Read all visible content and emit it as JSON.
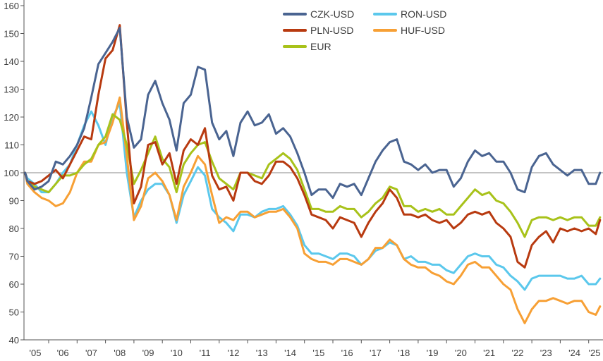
{
  "chart_data": {
    "type": "line",
    "title": "",
    "xlabel": "",
    "ylabel": "",
    "ylim": [
      40,
      160
    ],
    "yticks": [
      40,
      50,
      60,
      70,
      80,
      90,
      100,
      110,
      120,
      130,
      140,
      150,
      160
    ],
    "xlim": [
      2005.17,
      2025.4
    ],
    "xtick_labels": [
      "'05",
      "'06",
      "'07",
      "'08",
      "'09",
      "'10",
      "'11",
      "'12",
      "'13",
      "'14",
      "'15",
      "'16",
      "'17",
      "'18",
      "'19",
      "'20",
      "'21",
      "'22",
      "'23",
      "'24",
      "'25"
    ],
    "xtick_years": [
      2005,
      2006,
      2007,
      2008,
      2009,
      2010,
      2011,
      2012,
      2013,
      2014,
      2015,
      2016,
      2017,
      2018,
      2019,
      2020,
      2021,
      2022,
      2023,
      2024,
      2025
    ],
    "reference_line": 100,
    "grid": false,
    "legend_position": "top-right",
    "x": [
      2005.17,
      2005.25,
      2005.5,
      2005.75,
      2006,
      2006.25,
      2006.5,
      2006.75,
      2007,
      2007.25,
      2007.5,
      2007.75,
      2008,
      2008.25,
      2008.5,
      2008.75,
      2009,
      2009.25,
      2009.5,
      2009.75,
      2010,
      2010.25,
      2010.5,
      2010.75,
      2011,
      2011.25,
      2011.5,
      2011.75,
      2012,
      2012.25,
      2012.5,
      2012.75,
      2013,
      2013.25,
      2013.5,
      2013.75,
      2014,
      2014.25,
      2014.5,
      2014.75,
      2015,
      2015.25,
      2015.5,
      2015.75,
      2016,
      2016.25,
      2016.5,
      2016.75,
      2017,
      2017.25,
      2017.5,
      2017.75,
      2018,
      2018.25,
      2018.5,
      2018.75,
      2019,
      2019.25,
      2019.5,
      2019.75,
      2020,
      2020.25,
      2020.5,
      2020.75,
      2021,
      2021.25,
      2021.5,
      2021.75,
      2022,
      2022.25,
      2022.5,
      2022.75,
      2023,
      2023.25,
      2023.5,
      2023.75,
      2024,
      2024.25,
      2024.5,
      2024.75,
      2025,
      2025.25,
      2025.4
    ],
    "series": [
      {
        "name": "RON-USD",
        "color": "#5bc8ec",
        "values": [
          100,
          98,
          96,
          93,
          93,
          96,
          100,
          103,
          110,
          117,
          122,
          117,
          110,
          120,
          125,
          100,
          84,
          90,
          94,
          96,
          96,
          92,
          82,
          92,
          97,
          102,
          99,
          87,
          84,
          82,
          79,
          85,
          85,
          84,
          86,
          87,
          87,
          88,
          85,
          81,
          74,
          71,
          71,
          70,
          69,
          71,
          71,
          70,
          67,
          69,
          72,
          73,
          75,
          74,
          69,
          70,
          68,
          68,
          67,
          67,
          65,
          64,
          67,
          70,
          71,
          70,
          70,
          67,
          66,
          63,
          61,
          58,
          62,
          63,
          63,
          63,
          63,
          62,
          62,
          63,
          60,
          60,
          62
        ]
      },
      {
        "name": "HUF-USD",
        "color": "#f7a035",
        "values": [
          100,
          96,
          93,
          91,
          90,
          88,
          89,
          93,
          100,
          104,
          104,
          110,
          111,
          118,
          127,
          106,
          83,
          88,
          98,
          100,
          97,
          92,
          83,
          95,
          100,
          106,
          103,
          92,
          82,
          84,
          83,
          86,
          86,
          84,
          85,
          86,
          86,
          87,
          84,
          80,
          71,
          69,
          68,
          68,
          67,
          69,
          69,
          68,
          67,
          69,
          73,
          73,
          76,
          74,
          69,
          67,
          66,
          66,
          64,
          63,
          61,
          60,
          63,
          67,
          68,
          66,
          66,
          63,
          60,
          58,
          51,
          46,
          51,
          54,
          54,
          55,
          54,
          53,
          54,
          54,
          50,
          49,
          52
        ]
      },
      {
        "name": "EUR",
        "color": "#a8c21a",
        "values": [
          100,
          97,
          95,
          94,
          93,
          96,
          99,
          99,
          100,
          103,
          105,
          110,
          113,
          121,
          119,
          110,
          96,
          101,
          107,
          113,
          105,
          102,
          93,
          103,
          107,
          110,
          111,
          104,
          98,
          96,
          94,
          100,
          100,
          99,
          98,
          103,
          105,
          107,
          105,
          101,
          94,
          87,
          87,
          86,
          86,
          88,
          87,
          87,
          84,
          86,
          89,
          91,
          95,
          94,
          88,
          88,
          86,
          87,
          86,
          87,
          85,
          85,
          88,
          91,
          94,
          92,
          93,
          90,
          89,
          86,
          82,
          77,
          83,
          84,
          84,
          83,
          84,
          83,
          84,
          84,
          81,
          81,
          84
        ]
      },
      {
        "name": "PLN-USD",
        "color": "#b83a10",
        "values": [
          100,
          97,
          96,
          97,
          99,
          101,
          98,
          103,
          108,
          113,
          112,
          128,
          141,
          144,
          153,
          118,
          89,
          95,
          110,
          111,
          103,
          107,
          96,
          108,
          112,
          110,
          116,
          99,
          94,
          95,
          90,
          100,
          100,
          97,
          96,
          99,
          104,
          104,
          102,
          98,
          92,
          85,
          84,
          83,
          80,
          84,
          83,
          82,
          77,
          82,
          86,
          89,
          94,
          91,
          85,
          85,
          84,
          85,
          83,
          82,
          83,
          80,
          82,
          85,
          86,
          85,
          86,
          82,
          80,
          77,
          68,
          66,
          74,
          77,
          79,
          75,
          80,
          79,
          80,
          79,
          80,
          78,
          83
        ]
      },
      {
        "name": "CZK-USD",
        "color": "#4a6491",
        "values": [
          100,
          97,
          94,
          95,
          97,
          104,
          103,
          106,
          110,
          116,
          127,
          139,
          143,
          147,
          152,
          120,
          109,
          112,
          128,
          133,
          125,
          119,
          108,
          125,
          128,
          138,
          137,
          118,
          112,
          115,
          106,
          118,
          122,
          117,
          118,
          121,
          114,
          116,
          113,
          107,
          100,
          92,
          94,
          94,
          91,
          96,
          95,
          96,
          92,
          98,
          104,
          108,
          111,
          112,
          104,
          103,
          101,
          103,
          100,
          101,
          101,
          95,
          98,
          104,
          108,
          106,
          107,
          104,
          104,
          100,
          94,
          93,
          102,
          106,
          107,
          103,
          101,
          99,
          101,
          101,
          96,
          96,
          100
        ]
      }
    ],
    "legend": [
      {
        "name": "CZK-USD",
        "color": "#4a6491"
      },
      {
        "name": "RON-USD",
        "color": "#5bc8ec"
      },
      {
        "name": "PLN-USD",
        "color": "#b83a10"
      },
      {
        "name": "HUF-USD",
        "color": "#f7a035"
      },
      {
        "name": "EUR",
        "color": "#a8c21a"
      }
    ],
    "axis_color": "#555555",
    "reference_color": "#a0a0a0"
  }
}
